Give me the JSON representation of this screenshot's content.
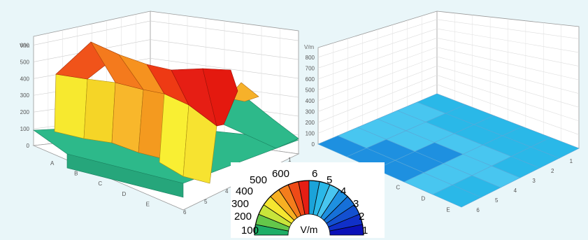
{
  "chart_data": [
    {
      "type": "area",
      "unit_label": "V/m",
      "z_ticks": [
        "0",
        "100",
        "200",
        "300",
        "400",
        "500",
        "600"
      ],
      "row_labels": [
        "A",
        "B",
        "C",
        "D",
        "E"
      ],
      "col_labels": [
        "1",
        "2",
        "3",
        "4",
        "5",
        "6"
      ],
      "zlim": [
        0,
        600
      ],
      "series": [
        {
          "values": [
            480,
            600,
            560,
            480,
            480,
            480,
            480
          ]
        },
        {
          "values": [
            40,
            40,
            40,
            40,
            40,
            40,
            40
          ]
        }
      ],
      "mid_values": [
        140,
        150,
        450,
        500,
        500,
        280,
        120
      ]
    },
    {
      "type": "heatmap",
      "unit_label": "V/m",
      "z_ticks": [
        "0",
        "100",
        "200",
        "300",
        "400",
        "500",
        "600",
        "700",
        "800"
      ],
      "row_labels": [
        "A",
        "B",
        "C",
        "D",
        "E"
      ],
      "col_labels": [
        "1",
        "2",
        "3",
        "4",
        "5",
        "6"
      ],
      "zlim": [
        0,
        800
      ],
      "levels": [
        [
          2,
          3,
          3,
          3,
          3,
          4
        ],
        [
          2,
          2,
          3,
          3,
          4,
          4
        ],
        [
          2,
          2,
          2,
          3,
          4,
          4
        ],
        [
          3,
          3,
          3,
          3,
          4,
          4
        ],
        [
          4,
          4,
          3,
          4,
          4,
          4
        ]
      ]
    }
  ],
  "legend": {
    "unit": "V/m",
    "left_labels": [
      "100",
      "200",
      "300",
      "400",
      "500",
      "600"
    ],
    "right_labels": [
      "6",
      "5",
      "4",
      "3",
      "2",
      "1"
    ],
    "left_colors": [
      "#1fae67",
      "#64c74a",
      "#c8e43a",
      "#f6e630",
      "#f7b023",
      "#f47d1c",
      "#ef4a17",
      "#e61e14"
    ],
    "right_colors": [
      "#1ba3d9",
      "#2ab8e8",
      "#48c6f0",
      "#1e90e0",
      "#1670d8",
      "#1350d0",
      "#1030c8",
      "#0a10b8"
    ]
  }
}
